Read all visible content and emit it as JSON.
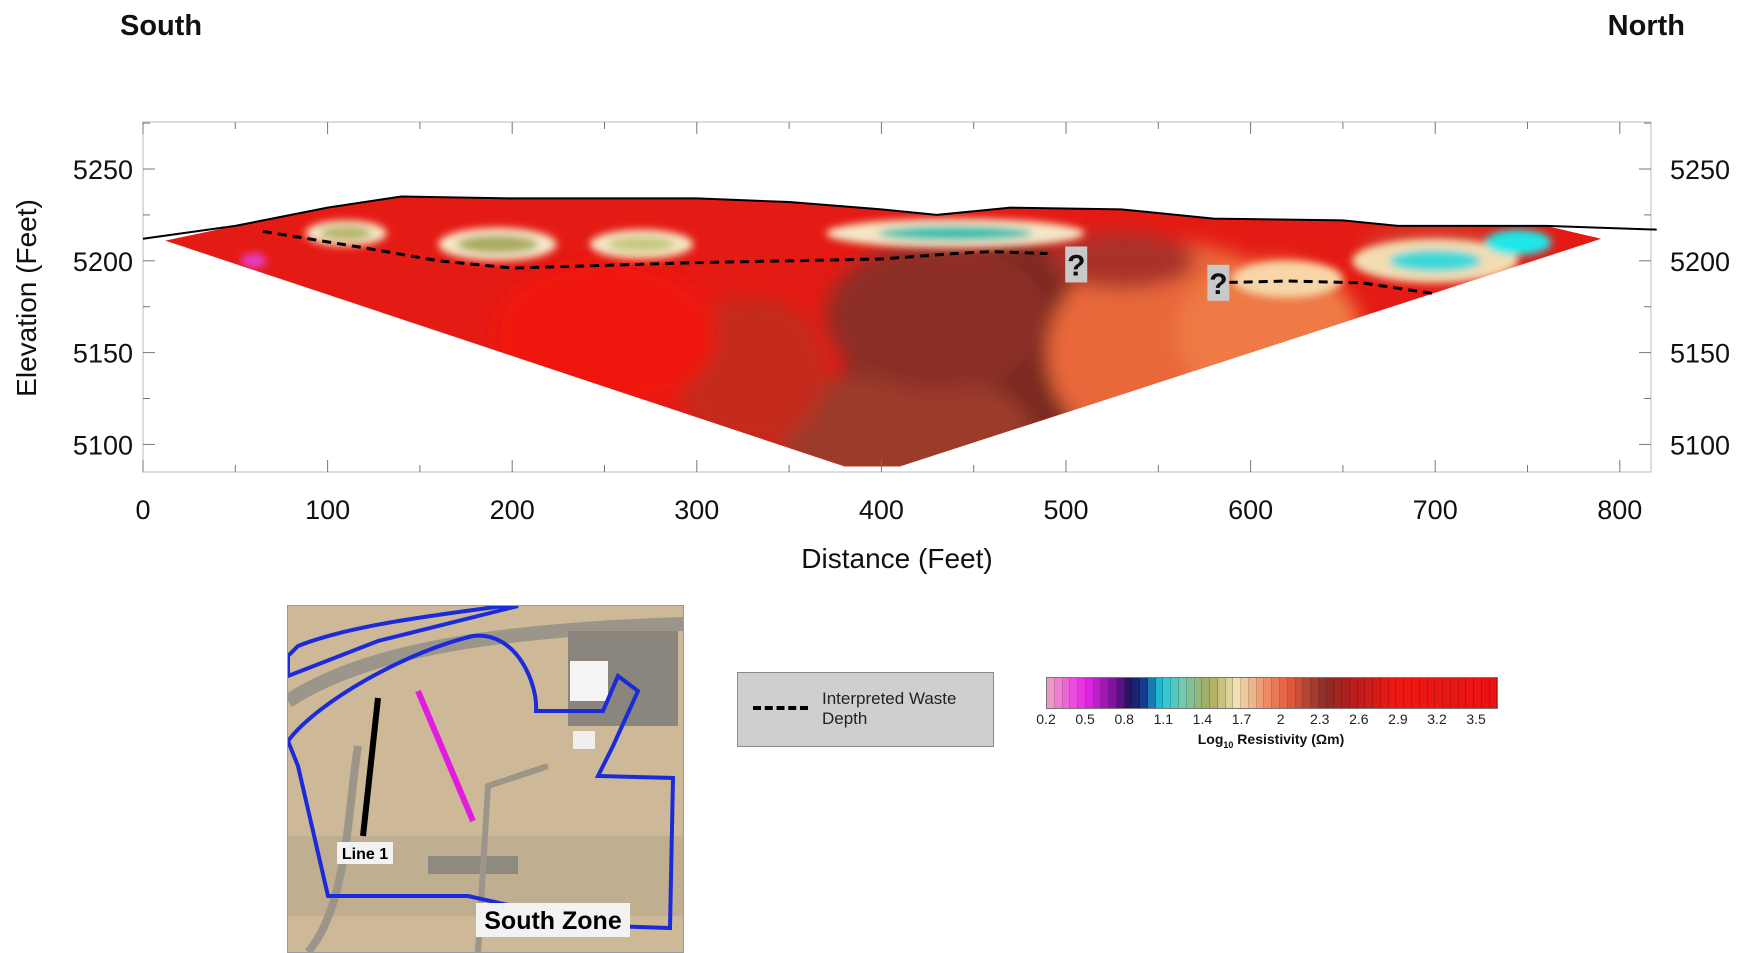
{
  "direction": {
    "left": "South",
    "right": "North"
  },
  "chart_data": {
    "type": "heatmap",
    "title": "",
    "xlabel": "Distance (Feet)",
    "ylabel": "Elevation (Feet)",
    "xlim": [
      0,
      820
    ],
    "ylim": [
      5085,
      5275
    ],
    "x_ticks": [
      0,
      100,
      200,
      300,
      400,
      500,
      600,
      700,
      800
    ],
    "y_ticks": [
      5100,
      5150,
      5200,
      5250
    ],
    "ground_surface": [
      [
        0,
        5212
      ],
      [
        50,
        5219
      ],
      [
        100,
        5229
      ],
      [
        140,
        5235
      ],
      [
        200,
        5234
      ],
      [
        300,
        5234
      ],
      [
        350,
        5232
      ],
      [
        400,
        5228
      ],
      [
        430,
        5225
      ],
      [
        470,
        5229
      ],
      [
        530,
        5228
      ],
      [
        580,
        5223
      ],
      [
        650,
        5222
      ],
      [
        680,
        5219
      ],
      [
        760,
        5219
      ],
      [
        820,
        5217
      ]
    ],
    "section_bottom": [
      [
        12,
        5211
      ],
      [
        380,
        5088
      ],
      [
        410,
        5088
      ],
      [
        790,
        5212
      ]
    ],
    "waste_depth_series": [
      {
        "points": [
          [
            65,
            5216
          ],
          [
            120,
            5207
          ],
          [
            160,
            5200
          ],
          [
            200,
            5196
          ],
          [
            300,
            5199
          ],
          [
            400,
            5201
          ],
          [
            440,
            5204
          ],
          [
            460,
            5205
          ],
          [
            490,
            5204
          ]
        ]
      },
      {
        "points": [
          [
            580,
            5188
          ],
          [
            620,
            5189
          ],
          [
            660,
            5188
          ],
          [
            700,
            5182
          ]
        ]
      }
    ],
    "annotations": [
      {
        "text": "?",
        "x": 505,
        "y": 5198
      },
      {
        "text": "?",
        "x": 582,
        "y": 5188
      }
    ],
    "colorbar": {
      "label_main": "Log",
      "label_sub": "10",
      "label_rest": " Resistivity (Ωm)",
      "ticks": [
        "0.2",
        "0.5",
        "0.8",
        "1.1",
        "1.4",
        "1.7",
        "2",
        "2.3",
        "2.6",
        "2.9",
        "3.2",
        "3.5"
      ],
      "range": [
        0.2,
        3.5
      ]
    }
  },
  "legend": {
    "label": "Interpreted Waste Depth"
  },
  "map": {
    "line_label": "Line 1",
    "zone_label": "South Zone"
  },
  "colors": {
    "ground_line": "#000000",
    "waste_line": "#000000",
    "line1": "#000000",
    "magenta_line": "#e31ae0",
    "zone_boundary": "#1c2bd9"
  }
}
